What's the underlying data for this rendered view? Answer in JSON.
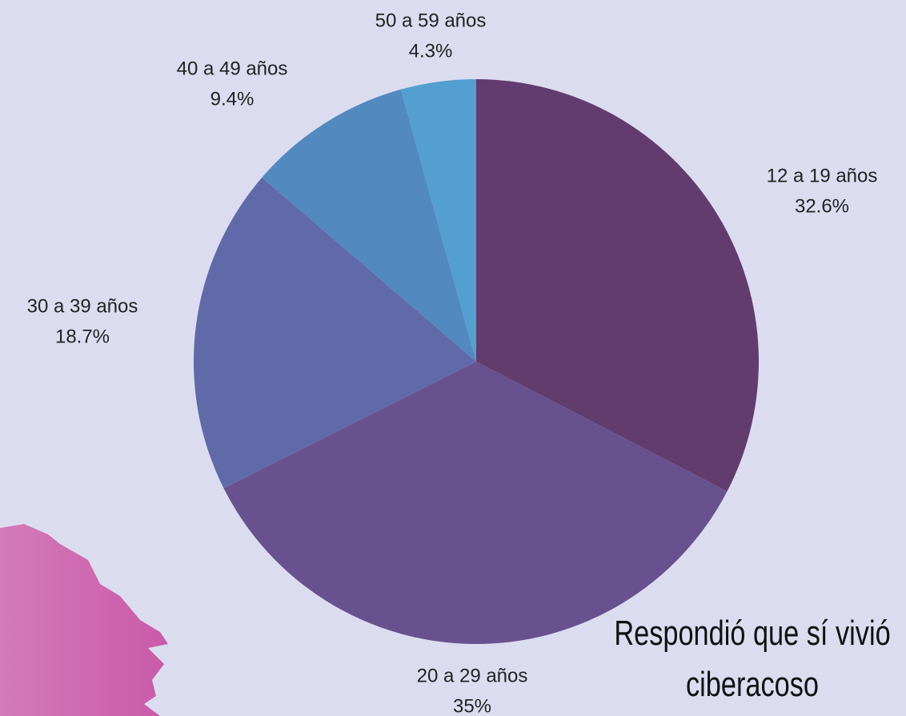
{
  "chart_data": {
    "type": "pie",
    "title": "Respondió que sí vivió ciberacoso",
    "categories": [
      "12 a 19 años",
      "20 a 29 años",
      "30 a 39 años",
      "40 a 49 años",
      "50 a 59 años"
    ],
    "values": [
      32.6,
      35,
      18.7,
      9.4,
      4.3
    ],
    "value_labels": [
      "32.6%",
      "35%",
      "18.7%",
      "9.4%",
      "4.3%"
    ],
    "colors": [
      "#633c6e",
      "#67528f",
      "#616aa8",
      "#5289be",
      "#539fcf"
    ]
  }
}
